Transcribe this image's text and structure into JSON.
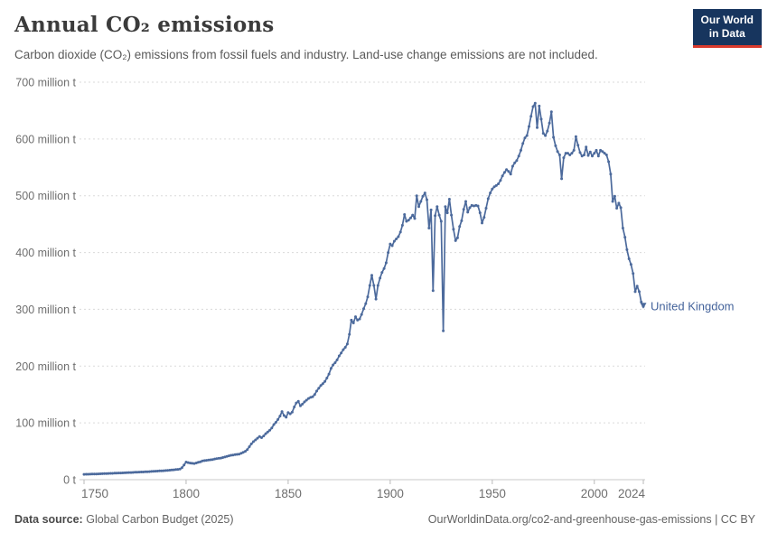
{
  "header": {
    "title": "Annual CO₂ emissions",
    "subtitle": "Carbon dioxide (CO₂) emissions from fossil fuels and industry. Land-use change emissions are not included.",
    "logo": {
      "line1": "Our World",
      "line2": "in Data"
    }
  },
  "footer": {
    "source_label": "Data source:",
    "source_value": "Global Carbon Budget (2025)",
    "credit": "OurWorldinData.org/co2-and-greenhouse-gas-emissions | CC BY"
  },
  "colors": {
    "series": "#4C6A9C",
    "entity_label": "#44639B",
    "grid": "#DADADA",
    "axis": "#C9C9C9",
    "tick": "#B9B9B9",
    "axis_text": "#6E6E6E",
    "logo_bg": "#17355E",
    "logo_accent": "#D93A2D"
  },
  "chart_data": {
    "type": "line",
    "title": "Annual CO₂ emissions",
    "xlabel": "",
    "ylabel": "",
    "unit": "million t",
    "grid": "horizontal-dashed",
    "legend": "end-of-line-label",
    "xlim": [
      1750,
      2024
    ],
    "ylim": [
      0,
      700
    ],
    "x_ticks": [
      1750,
      1800,
      1850,
      1900,
      1950,
      2000,
      2024
    ],
    "y_ticks": [
      0,
      100,
      200,
      300,
      400,
      500,
      600,
      700
    ],
    "y_tick_labels": [
      "0 t",
      "100 million t",
      "200 million t",
      "300 million t",
      "400 million t",
      "500 million t",
      "600 million t",
      "700 million t"
    ],
    "series": [
      {
        "name": "United Kingdom",
        "color": "#4C6A9C",
        "start_year": 1750,
        "end_year": 2024,
        "values": [
          9.4,
          9.5,
          9.6,
          9.7,
          9.9,
          10.0,
          10.1,
          10.2,
          10.4,
          10.5,
          10.7,
          10.8,
          10.9,
          11.1,
          11.2,
          11.4,
          11.5,
          11.7,
          11.8,
          12.0,
          12.1,
          12.3,
          12.5,
          12.6,
          12.8,
          13.0,
          13.1,
          13.3,
          13.5,
          13.6,
          13.8,
          14.0,
          14.2,
          14.4,
          14.7,
          14.9,
          15.1,
          15.4,
          15.6,
          15.8,
          16.1,
          16.4,
          16.7,
          17.0,
          17.4,
          17.8,
          18.2,
          18.6,
          21.0,
          26.0,
          31,
          30,
          29.2,
          28.8,
          28.5,
          29.5,
          30.5,
          31.5,
          33,
          33.5,
          34,
          34.5,
          35,
          35.5,
          36.5,
          37,
          37.5,
          38,
          39,
          40,
          41,
          42,
          43,
          43.5,
          44,
          44.5,
          45,
          46.5,
          48,
          50,
          53,
          58,
          63,
          67,
          70,
          73,
          76,
          74,
          77,
          81,
          84,
          87,
          91,
          97,
          101,
          106,
          112,
          120,
          113,
          110,
          118,
          116,
          119,
          128,
          135,
          138,
          130,
          133,
          137,
          140,
          143,
          145,
          146,
          150,
          156,
          161,
          166,
          169,
          173,
          179,
          186,
          196,
          202,
          206,
          211,
          218,
          223,
          229,
          233,
          239,
          256,
          281,
          276,
          287,
          281,
          283,
          291,
          301,
          310,
          322,
          342,
          360,
          342,
          318,
          342,
          355,
          365,
          372,
          382,
          400,
          415,
          412,
          420,
          424,
          428,
          436,
          448,
          467,
          455,
          457,
          461,
          466,
          460,
          500,
          481,
          490,
          499,
          505,
          493,
          443,
          475,
          333,
          465,
          481,
          466,
          455,
          262,
          481,
          470,
          494,
          466,
          441,
          421,
          426,
          446,
          456,
          476,
          490,
          471,
          479,
          483,
          482,
          483,
          482,
          470,
          452,
          462,
          478,
          495,
          505,
          512,
          516,
          518,
          521,
          527,
          535,
          541,
          546,
          543,
          538,
          552,
          558,
          562,
          570,
          580,
          592,
          602,
          606,
          622,
          640,
          657,
          663,
          620,
          658,
          635,
          610,
          606,
          614,
          628,
          648,
          603,
          588,
          578,
          572,
          530,
          567,
          575,
          575,
          572,
          575,
          580,
          604,
          589,
          576,
          570,
          572,
          586,
          571,
          577,
          570,
          575,
          580,
          570,
          580,
          578,
          575,
          572,
          560,
          538,
          490,
          499,
          478,
          487,
          479,
          443,
          427,
          405,
          389,
          379,
          363,
          331,
          341,
          331,
          313,
          305
        ]
      }
    ]
  }
}
